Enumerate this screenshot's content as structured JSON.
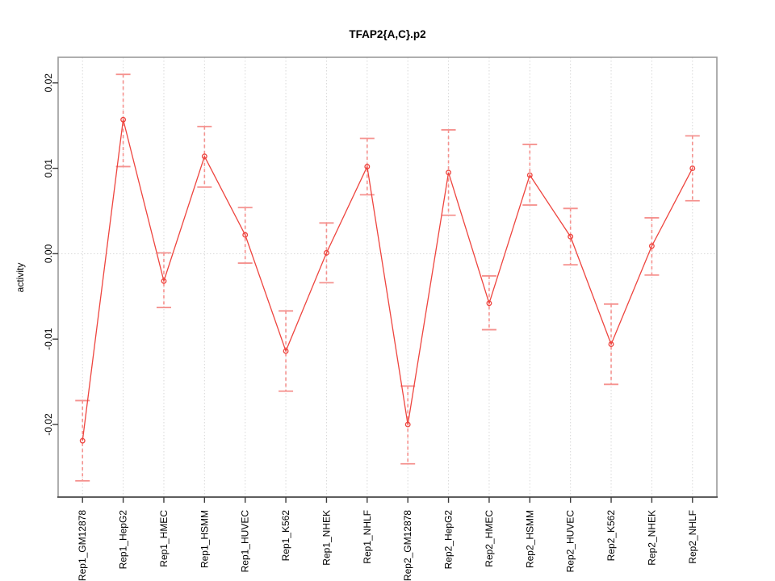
{
  "window": {
    "background": "#ffffff"
  },
  "chart_data": {
    "type": "line",
    "title": "TFAP2{A,C}.p2",
    "xlabel": "",
    "ylabel": "activity",
    "categories": [
      "Rep1_GM12878",
      "Rep1_HepG2",
      "Rep1_HMEC",
      "Rep1_HSMM",
      "Rep1_HUVEC",
      "Rep1_K562",
      "Rep1_NHEK",
      "Rep1_NHLF",
      "Rep2_GM12878",
      "Rep2_HepG2",
      "Rep2_HMEC",
      "Rep2_HSMM",
      "Rep2_HUVEC",
      "Rep2_K562",
      "Rep2_NHEK",
      "Rep2_NHLF"
    ],
    "series": [
      {
        "name": "activity",
        "values": [
          -0.0219,
          0.0157,
          -0.0032,
          0.0114,
          0.0022,
          -0.0114,
          0.0001,
          0.0102,
          -0.02,
          0.0095,
          -0.0058,
          0.0092,
          0.002,
          -0.0106,
          0.0009,
          0.01
        ],
        "error_low": [
          -0.0266,
          0.0102,
          -0.0063,
          0.0078,
          -0.0011,
          -0.0161,
          -0.0034,
          0.0069,
          -0.0246,
          0.0045,
          -0.0089,
          0.0057,
          -0.0013,
          -0.0153,
          -0.0025,
          0.0062
        ],
        "error_high": [
          -0.0172,
          0.021,
          0.0001,
          0.0149,
          0.0054,
          -0.0067,
          0.0036,
          0.0135,
          -0.0155,
          0.0145,
          -0.0026,
          0.0128,
          0.0053,
          -0.0059,
          0.0042,
          0.0138
        ]
      }
    ],
    "yticks": [
      -0.02,
      -0.01,
      0,
      0.01,
      0.02
    ],
    "ytick_labels": [
      "-0.02",
      "-0.01",
      "0.00",
      "0.01",
      "0.02"
    ],
    "ylim": [
      -0.0285,
      0.023
    ],
    "grid": {
      "vertical_per_category": true,
      "horizontal_at_zero_only": true,
      "style": "dotted"
    },
    "legend": "none",
    "marker": "open-circle",
    "colors": {
      "line": "#ee453f",
      "marker": "#ee453f",
      "error_bar": "#f5928f",
      "grid": "#d8d8d8",
      "box": "#9a9a9a",
      "axis": "#3c3c3c",
      "text": "#000000"
    }
  }
}
